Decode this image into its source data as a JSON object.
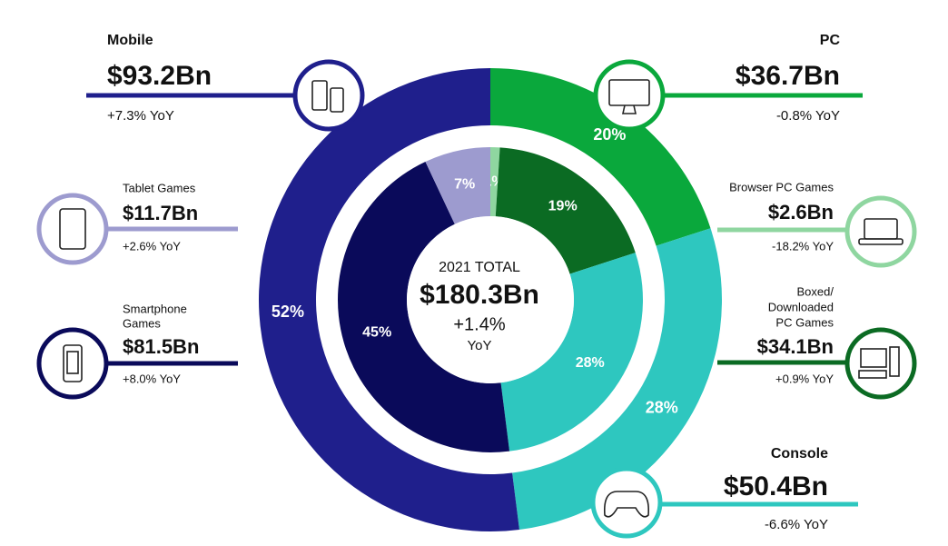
{
  "chart_data": {
    "type": "donut",
    "center": {
      "title": "2021 TOTAL",
      "value": "$180.3Bn",
      "growth": "+1.4%",
      "growth_unit": "YoY"
    },
    "outer_ring": {
      "values": [
        20,
        28,
        52
      ],
      "value_labels": [
        "20%",
        "28%",
        "52%"
      ],
      "colors": [
        "#0aa83c",
        "#2ec7bf",
        "#1f1f8c"
      ]
    },
    "inner_ring": {
      "values": [
        1,
        19,
        28,
        45,
        7
      ],
      "value_labels": [
        "1%",
        "19%",
        "28%",
        "45%",
        "7%"
      ],
      "colors": [
        "#8fd6a0",
        "#0b6b23",
        "#2ec7bf",
        "#0a0a5a",
        "#9d9bcf"
      ]
    },
    "callouts": [
      {
        "label": [
          "Mobile"
        ],
        "value": "$93.2Bn",
        "growth": "+7.3% YoY",
        "color": "#1f1f8c"
      },
      {
        "label": [
          "PC"
        ],
        "value": "$36.7Bn",
        "growth": "-0.8% YoY",
        "color": "#0aa83c"
      },
      {
        "label": [
          "Tablet Games"
        ],
        "value": "$11.7Bn",
        "growth": "+2.6% YoY",
        "color": "#9d9bcf"
      },
      {
        "label": [
          "Smartphone",
          "Games"
        ],
        "value": "$81.5Bn",
        "growth": "+8.0% YoY",
        "color": "#0a0a5a"
      },
      {
        "label": [
          "Browser PC Games"
        ],
        "value": "$2.6Bn",
        "growth": "-18.2% YoY",
        "color": "#8fd6a0"
      },
      {
        "label": [
          "Boxed/",
          "Downloaded",
          "PC Games"
        ],
        "value": "$34.1Bn",
        "growth": "+0.9% YoY",
        "color": "#0b6b23"
      },
      {
        "label": [
          "Console"
        ],
        "value": "$50.4Bn",
        "growth": "-6.6% YoY",
        "color": "#2ec7bf"
      }
    ]
  }
}
